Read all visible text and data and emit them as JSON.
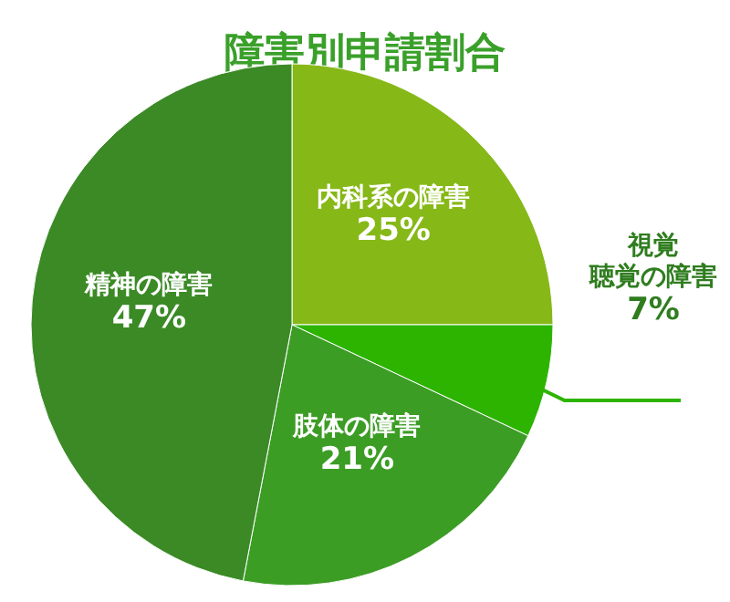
{
  "chart_data": {
    "type": "pie",
    "title": "障害別申請割合",
    "categories": [
      "内科系の障害",
      "視覚聴覚の障害",
      "肢体の障害",
      "精神の障害"
    ],
    "values": [
      25,
      7,
      21,
      47
    ],
    "colors": [
      "#86b817",
      "#2db400",
      "#3c9d25",
      "#3b8a26"
    ],
    "value_labels": [
      "25%",
      "7%",
      "21%",
      "47%"
    ]
  }
}
